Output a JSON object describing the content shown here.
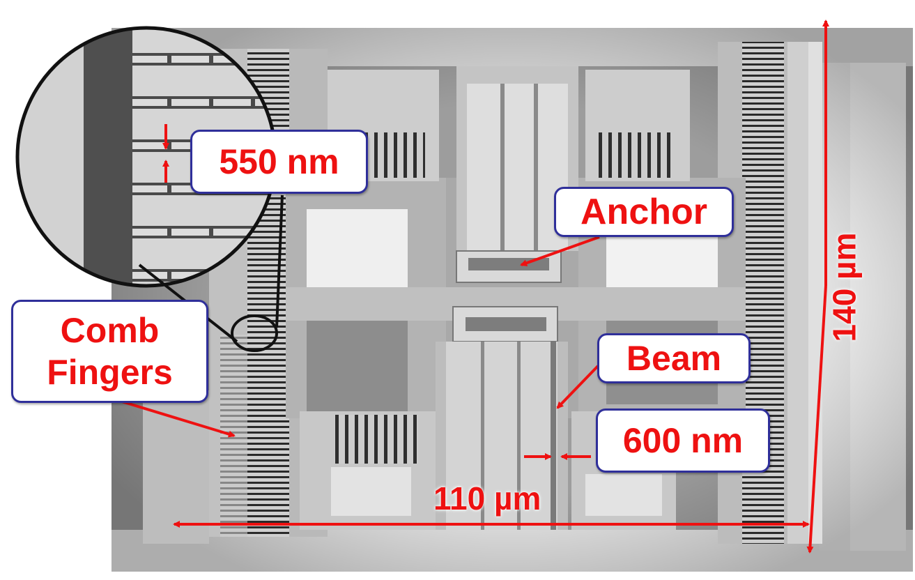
{
  "labels": {
    "gap_550": "550 nm",
    "anchor": "Anchor",
    "comb_line1": "Comb",
    "comb_line2": "Fingers",
    "beam": "Beam",
    "gap_600": "600 nm",
    "width_dim": "110 µm",
    "height_dim": "140 µm"
  },
  "colors": {
    "annotation_red": "#ee1111",
    "callout_border": "#2f2f9a",
    "callout_fill": "#ffffff",
    "sem_grey": "#a9a9a9"
  }
}
